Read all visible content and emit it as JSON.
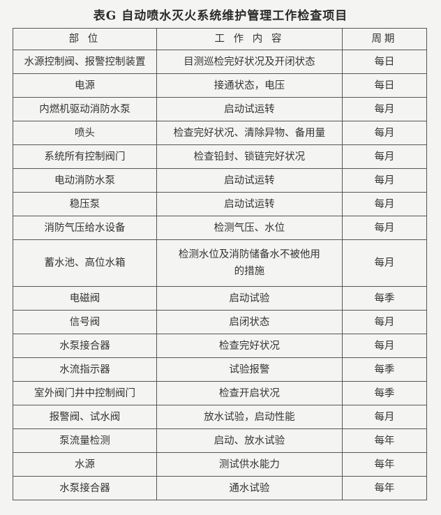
{
  "title": "表G  自动喷水灭火系统维护管理工作检查项目",
  "headers": [
    "部  位",
    "工 作 内 容",
    "周期"
  ],
  "rows": [
    [
      "水源控制阀、报警控制装置",
      "目测巡检完好状况及开闭状态",
      "每日"
    ],
    [
      "电源",
      "接通状态，电压",
      "每日"
    ],
    [
      "内燃机驱动消防水泵",
      "启动试运转",
      "每月"
    ],
    [
      "喷头",
      "检查完好状况、清除异物、备用量",
      "每月"
    ],
    [
      "系统所有控制阀门",
      "检查铅封、锁链完好状况",
      "每月"
    ],
    [
      "电动消防水泵",
      "启动试运转",
      "每月"
    ],
    [
      "稳压泵",
      "启动试运转",
      "每月"
    ],
    [
      "消防气压给水设备",
      "检测气压、水位",
      "每月"
    ],
    [
      "蓄水池、高位水箱",
      "检测水位及消防储备水不被他用的措施",
      "每月"
    ],
    [
      "电磁阀",
      "启动试验",
      "每季"
    ],
    [
      "信号阀",
      "启闭状态",
      "每月"
    ],
    [
      "水泵接合器",
      "检查完好状况",
      "每月"
    ],
    [
      "水流指示器",
      "试验报警",
      "每季"
    ],
    [
      "室外阀门井中控制阀门",
      "检查开启状况",
      "每季"
    ],
    [
      "报警阀、试水阀",
      "放水试验，启动性能",
      "每月"
    ],
    [
      "泵流量检测",
      "启动、放水试验",
      "每年"
    ],
    [
      "水源",
      "测试供水能力",
      "每年"
    ],
    [
      "水泵接合器",
      "通水试验",
      "每年"
    ]
  ]
}
